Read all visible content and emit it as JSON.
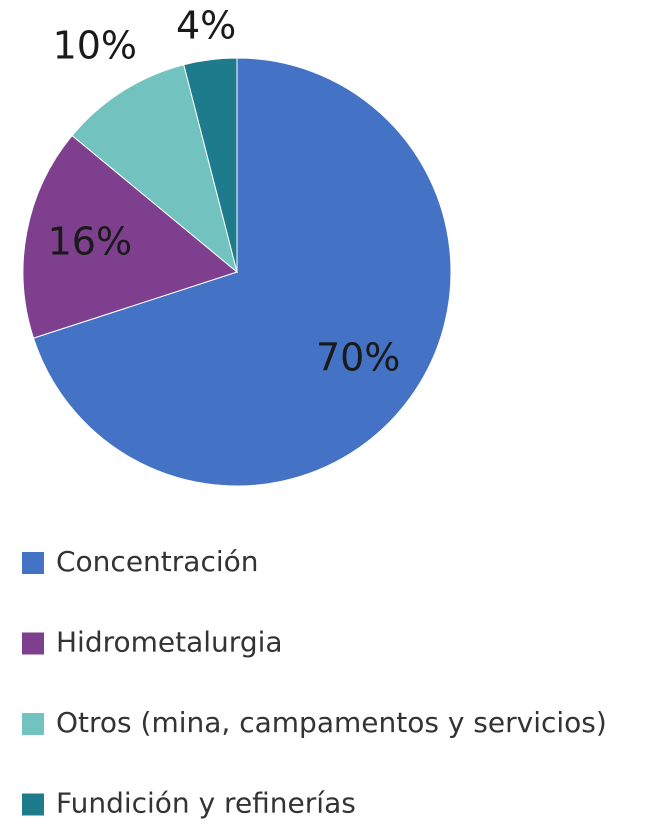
{
  "chart_data": {
    "type": "pie",
    "categories": [
      "Concentración",
      "Hidrometalurgia",
      "Otros (mina, campamentos y servicios)",
      "Fundición y refinerías"
    ],
    "values": [
      70,
      16,
      10,
      4
    ],
    "value_labels": [
      "70%",
      "16%",
      "10%",
      "4%"
    ],
    "colors": [
      "#4472c4",
      "#7d3f8e",
      "#72c3c0",
      "#1e7b8c"
    ],
    "legend": "bottom"
  }
}
